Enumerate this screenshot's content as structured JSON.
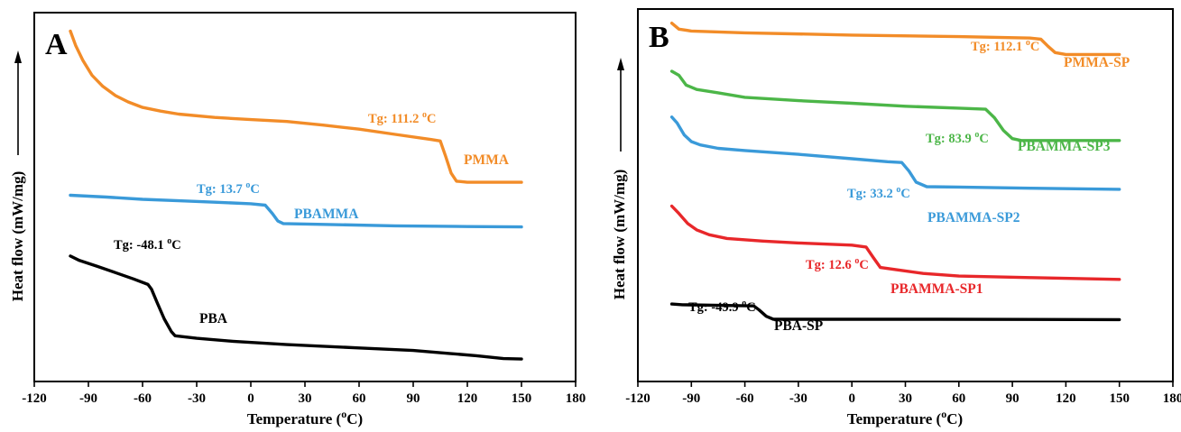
{
  "chart_data": [
    {
      "type": "line",
      "panel_label": "A",
      "xlabel": "Temperature (",
      "xlabel_sup": "o",
      "xlabel_tail": "C)",
      "ylabel": "Heat flow (mW/mg)",
      "xlim": [
        -120,
        180
      ],
      "xticks": [
        -120,
        -90,
        -60,
        -30,
        0,
        30,
        60,
        90,
        120,
        150,
        180
      ],
      "xtick_labels": [
        "-120",
        "-90",
        "-60",
        "-30",
        "0",
        "30",
        "60",
        "90",
        "120",
        "150",
        "180"
      ],
      "ylim": [
        0,
        100
      ],
      "y_ticks_shown": false,
      "grid": false,
      "series": [
        {
          "name": "PMMA",
          "color": "#F28C28",
          "tg_label": "Tg: 111.2 ",
          "tg_unit": "C",
          "points": [
            [
              -100,
              95
            ],
            [
              -97,
              91
            ],
            [
              -93,
              87
            ],
            [
              -88,
              83
            ],
            [
              -82,
              80
            ],
            [
              -75,
              77.5
            ],
            [
              -68,
              75.8
            ],
            [
              -60,
              74.3
            ],
            [
              -50,
              73.3
            ],
            [
              -40,
              72.5
            ],
            [
              -20,
              71.6
            ],
            [
              -10,
              71.3
            ],
            [
              0,
              71
            ],
            [
              20,
              70.5
            ],
            [
              40,
              69.5
            ],
            [
              60,
              68.4
            ],
            [
              80,
              67
            ],
            [
              100,
              65.6
            ],
            [
              105,
              65.2
            ],
            [
              108,
              61
            ],
            [
              111,
              56.5
            ],
            [
              114,
              54.3
            ],
            [
              120,
              54
            ],
            [
              150,
              54
            ]
          ]
        },
        {
          "name": "PBAMMA",
          "color": "#3A9AD9",
          "tg_label": "Tg: 13.7 ",
          "tg_unit": "C",
          "points": [
            [
              -100,
              50.5
            ],
            [
              -80,
              50
            ],
            [
              -60,
              49.4
            ],
            [
              -40,
              49
            ],
            [
              -20,
              48.6
            ],
            [
              0,
              48.2
            ],
            [
              8,
              47.8
            ],
            [
              12,
              45.5
            ],
            [
              15,
              43.5
            ],
            [
              18,
              42.8
            ],
            [
              40,
              42.6
            ],
            [
              80,
              42.2
            ],
            [
              120,
              42
            ],
            [
              150,
              41.9
            ]
          ]
        },
        {
          "name": "PBA",
          "color": "#000000",
          "tg_label": "Tg: -48.1 ",
          "tg_unit": "C",
          "points": [
            [
              -100,
              34
            ],
            [
              -95,
              32.8
            ],
            [
              -85,
              31.2
            ],
            [
              -75,
              29.5
            ],
            [
              -65,
              27.8
            ],
            [
              -57,
              26.3
            ],
            [
              -55,
              25
            ],
            [
              -52,
              21.5
            ],
            [
              -48,
              17
            ],
            [
              -44,
              13.5
            ],
            [
              -42,
              12.4
            ],
            [
              -30,
              11.7
            ],
            [
              -10,
              10.9
            ],
            [
              20,
              10
            ],
            [
              60,
              9.1
            ],
            [
              90,
              8.4
            ],
            [
              110,
              7.6
            ],
            [
              125,
              7
            ],
            [
              140,
              6.2
            ],
            [
              150,
              6.1
            ]
          ]
        }
      ]
    },
    {
      "type": "line",
      "panel_label": "B",
      "xlabel": "Temperature (",
      "xlabel_sup": "o",
      "xlabel_tail": "C)",
      "ylabel": "Heat flow (mW/mg)",
      "xlim": [
        -120,
        180
      ],
      "xticks": [
        -120,
        -90,
        -60,
        -30,
        0,
        30,
        60,
        90,
        120,
        150,
        180
      ],
      "xtick_labels": [
        "-120",
        "-90",
        "-60",
        "-30",
        "0",
        "30",
        "60",
        "90",
        "120",
        "150",
        "180"
      ],
      "ylim": [
        0,
        100
      ],
      "y_ticks_shown": false,
      "grid": false,
      "series": [
        {
          "name": "PMMA-SP",
          "color": "#F28C28",
          "tg_label": "Tg: 112.1 ",
          "tg_unit": "C",
          "points": [
            [
              -101,
              96.2
            ],
            [
              -97,
              94.6
            ],
            [
              -90,
              94.1
            ],
            [
              -60,
              93.6
            ],
            [
              0,
              93
            ],
            [
              60,
              92.6
            ],
            [
              100,
              92.2
            ],
            [
              106,
              91.9
            ],
            [
              110,
              90
            ],
            [
              114,
              88.3
            ],
            [
              120,
              87.8
            ],
            [
              150,
              87.8
            ]
          ]
        },
        {
          "name": "PBAMMA-SP3",
          "color": "#4CB648",
          "tg_label": "Tg: 83.9 ",
          "tg_unit": "C",
          "points": [
            [
              -101,
              83.3
            ],
            [
              -97,
              82.2
            ],
            [
              -93,
              79.6
            ],
            [
              -87,
              78.4
            ],
            [
              -75,
              77.5
            ],
            [
              -60,
              76.3
            ],
            [
              -30,
              75.4
            ],
            [
              0,
              74.7
            ],
            [
              30,
              73.9
            ],
            [
              60,
              73.4
            ],
            [
              75,
              73.1
            ],
            [
              80,
              70.8
            ],
            [
              85,
              67.4
            ],
            [
              90,
              65.2
            ],
            [
              95,
              64.7
            ],
            [
              150,
              64.7
            ]
          ]
        },
        {
          "name": "PBAMMA-SP2",
          "color": "#3A9AD9",
          "tg_label": "Tg: 33.2 ",
          "tg_unit": "C",
          "points": [
            [
              -101,
              71
            ],
            [
              -98,
              69.4
            ],
            [
              -94,
              66.2
            ],
            [
              -90,
              64.4
            ],
            [
              -85,
              63.5
            ],
            [
              -75,
              62.6
            ],
            [
              -60,
              62
            ],
            [
              -30,
              61
            ],
            [
              0,
              59.8
            ],
            [
              20,
              59
            ],
            [
              28,
              58.8
            ],
            [
              32,
              56.5
            ],
            [
              36,
              53.5
            ],
            [
              42,
              52.3
            ],
            [
              60,
              52.2
            ],
            [
              100,
              51.9
            ],
            [
              150,
              51.6
            ]
          ]
        },
        {
          "name": "PBAMMA-SP1",
          "color": "#E8272A",
          "tg_label": "Tg: 12.6 ",
          "tg_unit": "C",
          "points": [
            [
              -101,
              47.1
            ],
            [
              -97,
              45.1
            ],
            [
              -92,
              42.4
            ],
            [
              -87,
              40.7
            ],
            [
              -80,
              39.4
            ],
            [
              -70,
              38.4
            ],
            [
              -50,
              37.7
            ],
            [
              -30,
              37.2
            ],
            [
              0,
              36.6
            ],
            [
              8,
              36.1
            ],
            [
              12,
              33.3
            ],
            [
              16,
              30.6
            ],
            [
              25,
              30
            ],
            [
              40,
              29
            ],
            [
              60,
              28.3
            ],
            [
              100,
              27.9
            ],
            [
              150,
              27.4
            ]
          ]
        },
        {
          "name": "PBA-SP",
          "color": "#000000",
          "tg_label": "Tg: -49.9 ",
          "tg_unit": "C",
          "points": [
            [
              -101,
              20.8
            ],
            [
              -95,
              20.6
            ],
            [
              -70,
              20.4
            ],
            [
              -55,
              20.3
            ],
            [
              -52,
              19.2
            ],
            [
              -48,
              17.5
            ],
            [
              -44,
              16.7
            ],
            [
              -20,
              16.7
            ],
            [
              50,
              16.7
            ],
            [
              150,
              16.6
            ]
          ]
        }
      ]
    }
  ]
}
